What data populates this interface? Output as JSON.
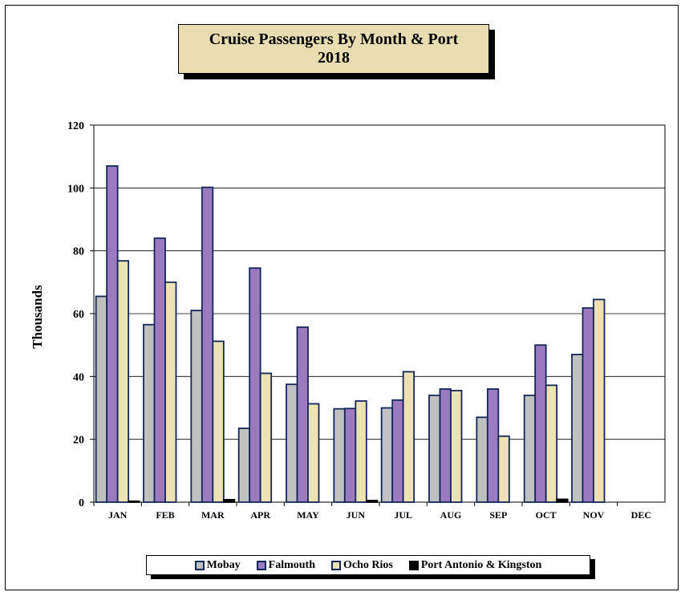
{
  "chart_data": {
    "type": "bar",
    "title": [
      "Cruise Passengers By Month & Port",
      "2018"
    ],
    "ylabel": "Thousands",
    "xlabel": "",
    "ylim": [
      0,
      120
    ],
    "yticks": [
      0,
      20,
      40,
      60,
      80,
      100,
      120
    ],
    "grid": true,
    "legend_position": "bottom",
    "categories": [
      "JAN",
      "FEB",
      "MAR",
      "APR",
      "MAY",
      "JUN",
      "JUL",
      "AUG",
      "SEP",
      "OCT",
      "NOV",
      "DEC"
    ],
    "series": [
      {
        "name": "Mobay",
        "color": "#c0c0c0",
        "values": [
          65.5,
          56.5,
          61,
          23.5,
          37.5,
          29.7,
          30,
          34,
          27,
          34,
          47,
          null
        ]
      },
      {
        "name": "Falmouth",
        "color": "#9b7bbf",
        "values": [
          107,
          84,
          100.2,
          74.5,
          55.7,
          29.8,
          32.5,
          36,
          36,
          50,
          61.8,
          null
        ]
      },
      {
        "name": "Ocho Rios",
        "color": "#ece2b4",
        "values": [
          76.8,
          70,
          51.2,
          41,
          31.3,
          32.2,
          41.5,
          35.5,
          21,
          37.2,
          64.5,
          null
        ]
      },
      {
        "name": "Port Antonio & Kingston",
        "color": "#000000",
        "values": [
          0.3,
          0,
          0.8,
          0,
          0,
          0.5,
          0,
          0,
          0,
          0.9,
          0,
          null
        ]
      }
    ]
  }
}
